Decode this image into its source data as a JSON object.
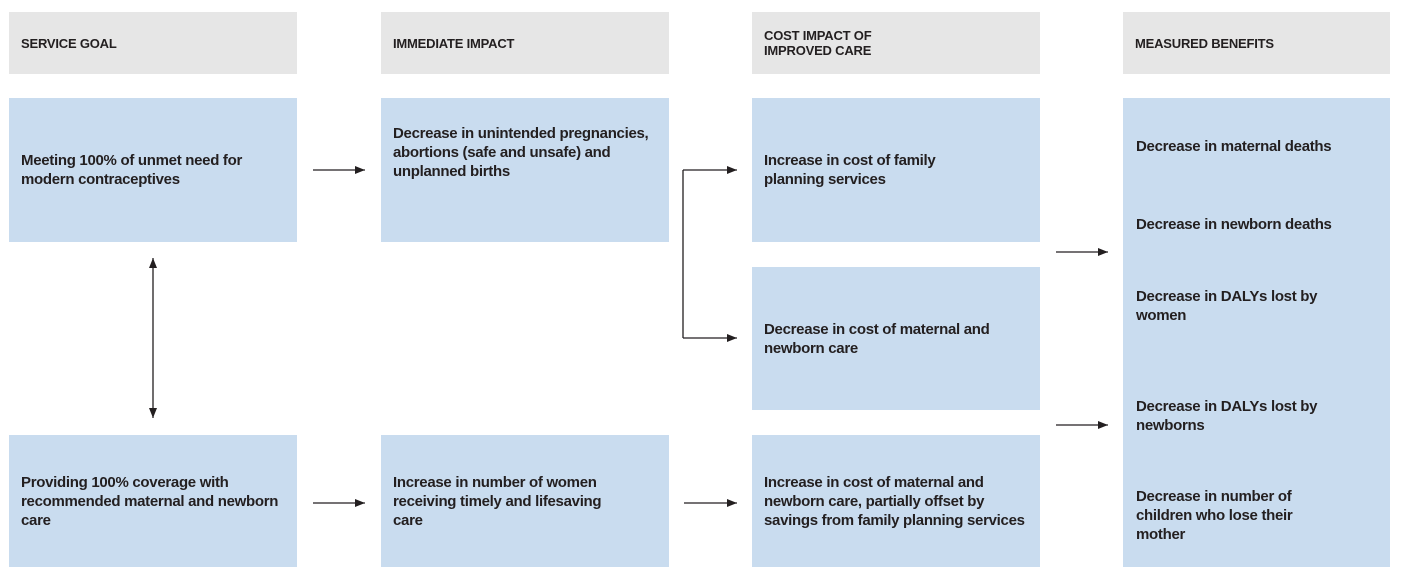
{
  "headers": [
    "SERVICE GOAL",
    "IMMEDIATE IMPACT",
    "COST IMPACT OF IMPROVED CARE",
    "MEASURED BENEFITS"
  ],
  "nodes": [
    {
      "label": "Meeting 100% of unmet need for modern contraceptives"
    },
    {
      "label": "Providing 100% coverage with recommended maternal and newborn care"
    },
    {
      "label": "Decrease in unintended pregnancies, abortions (safe and unsafe) and unplanned births"
    },
    {
      "label": "Increase in number of women receiving timely and lifesaving care"
    },
    {
      "label": "Increase in cost of family planning services"
    },
    {
      "label": "Decrease in cost of maternal and newborn care"
    },
    {
      "label": "Increase in cost of maternal and newborn care, partially offset by savings from family planning services"
    }
  ],
  "benefits": [
    "Decrease in maternal deaths",
    "Decrease in newborn deaths",
    "Decrease in DALYs lost by women",
    "Decrease in DALYs lost by newborns",
    "Decrease in number of children who lose their mother"
  ]
}
